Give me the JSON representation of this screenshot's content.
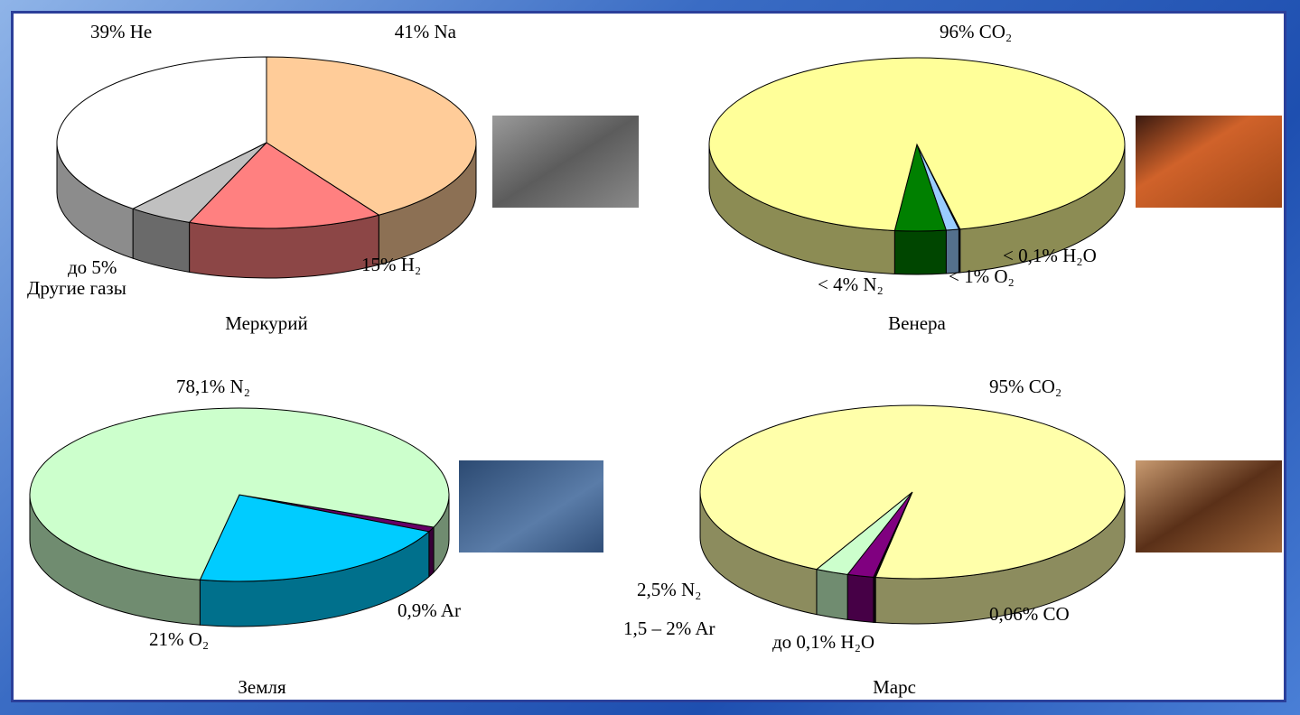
{
  "chart_data": [
    {
      "type": "pie",
      "title": "Меркурий",
      "values": [
        41,
        15,
        5,
        39
      ],
      "value_labels": [
        "41% Na",
        "15% H₂",
        "до 5%",
        "39% He"
      ],
      "categories": [
        null,
        null,
        "Другие газы",
        null
      ],
      "colors": [
        "#ffcc99",
        "#ff8080",
        "#c0c0c0",
        "#ffffff"
      ]
    },
    {
      "type": "pie",
      "title": "Венера",
      "values": [
        0.1,
        1,
        4,
        96
      ],
      "value_labels": [
        "< 0,1% H₂O",
        "< 1% O₂",
        "< 4% N₂",
        "96% CO₂"
      ],
      "colors": [
        "#0000cc",
        "#99ccff",
        "#008000",
        "#ffff99"
      ]
    },
    {
      "type": "pie",
      "title": "Земля",
      "values": [
        0.9,
        21,
        78.1
      ],
      "value_labels": [
        "0,9% Ar",
        "21% O₂",
        "78,1% N₂"
      ],
      "colors": [
        "#660066",
        "#00ccff",
        "#ccffcc"
      ]
    },
    {
      "type": "pie",
      "title": "Марс",
      "values": [
        0.06,
        0.1,
        2,
        2.5,
        95
      ],
      "value_labels": [
        "0,06% CO",
        "до 0,1% H₂O",
        "1,5 – 2% Ar",
        "2,5% N₂",
        "95% CO₂"
      ],
      "colors": [
        "#ffff33",
        "#660066",
        "#800080",
        "#ccffcc",
        "#ffffaa"
      ]
    }
  ]
}
